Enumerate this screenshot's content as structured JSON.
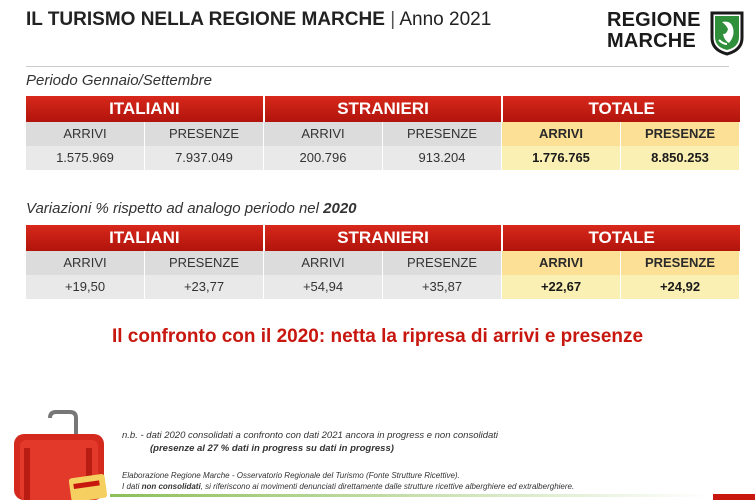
{
  "header": {
    "title": "IL TURISMO NELLA REGIONE MARCHE",
    "separator": "|",
    "year": "Anno 2021",
    "logo_line1": "REGIONE",
    "logo_line2": "MARCHE"
  },
  "section1": {
    "period": "Periodo Gennaio/Settembre",
    "groups": [
      "ITALIANI",
      "STRANIERI",
      "TOTALE"
    ],
    "labels": [
      "ARRIVI",
      "PRESENZE",
      "ARRIVI",
      "PRESENZE",
      "ARRIVI",
      "PRESENZE"
    ],
    "values": [
      "1.575.969",
      "7.937.049",
      "200.796",
      "913.204",
      "1.776.765",
      "8.850.253"
    ]
  },
  "section2": {
    "period_prefix": "Variazioni % rispetto ad analogo periodo nel ",
    "period_year": "2020",
    "groups": [
      "ITALIANI",
      "STRANIERI",
      "TOTALE"
    ],
    "labels": [
      "ARRIVI",
      "PRESENZE",
      "ARRIVI",
      "PRESENZE",
      "ARRIVI",
      "PRESENZE"
    ],
    "values": [
      "+19,50",
      "+23,77",
      "+54,94",
      "+35,87",
      "+22,67",
      "+24,92"
    ]
  },
  "headline": "Il confronto con il 2020: netta la ripresa di arrivi e presenze",
  "notes": {
    "nb": "n.b.  - dati 2020 consolidati a confronto con dati 2021 ancora in progress e non consolidati",
    "nb2": "(presenze al  27 % dati in  progress su dati in progress)",
    "source": "Elaborazione Regione Marche - Osservatorio Regionale del Turismo (Fonte Strutture Ricettive).",
    "disclaimer_prefix": "I dati ",
    "disclaimer_bold": "non consolidati",
    "disclaimer_suffix": ", si riferiscono ai movimenti denunciati direttamente dalle strutture ricettive alberghiere ed extralberghiere."
  },
  "colors": {
    "header_red": "#c8170f",
    "total_label": "#fbe096",
    "total_value": "#fbf0b4",
    "label_grey": "#dcdcdc",
    "value_grey": "#e9e9e9"
  },
  "icons": [
    "regione-marche-shield-icon",
    "red-suitcase-icon"
  ]
}
